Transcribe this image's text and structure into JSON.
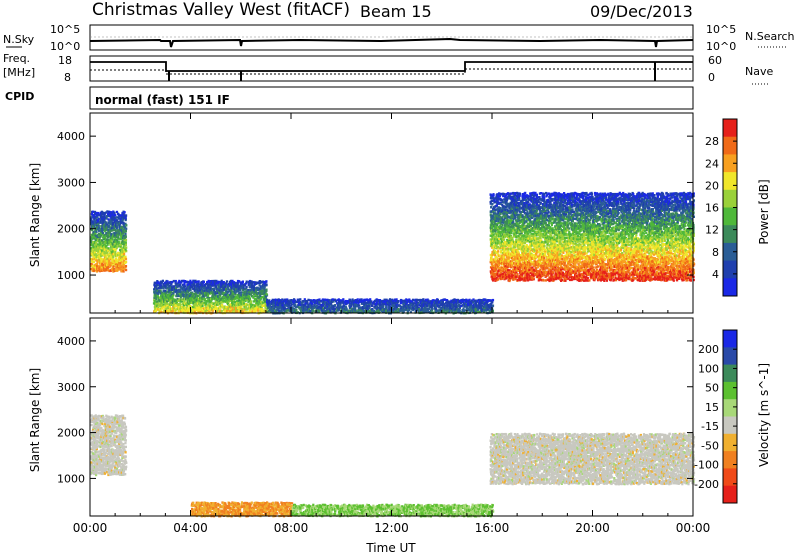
{
  "header": {
    "site_title": "Christmas Valley West (fitACF)",
    "beam_label": "Beam 15",
    "date": "09/Dec/2013"
  },
  "nsky_panel": {
    "left_label": "N.Sky",
    "left_ticks": [
      "10^5",
      "10^0"
    ],
    "right_label": "N.Search",
    "right_ticks": [
      "10^5",
      "10^0"
    ]
  },
  "freq_panel": {
    "left_label_line1": "Freq.",
    "left_label_line2": "[MHz]",
    "left_ticks": [
      "18",
      "8"
    ],
    "right_label": "Nave",
    "right_ticks": [
      "60",
      "0"
    ]
  },
  "cpid": {
    "label": "CPID",
    "value": "normal (fast) 151 IF"
  },
  "colors": {
    "power_scale": [
      "#1a28e6",
      "#1f3fae",
      "#2a5d96",
      "#3c8a5a",
      "#4fb83a",
      "#9ad13a",
      "#f0e62a",
      "#f8a020",
      "#f06a18",
      "#e6201a"
    ],
    "velocity_scale": [
      "#1a28e6",
      "#2a4aa8",
      "#3c8a5a",
      "#5cc030",
      "#a8d878",
      "#c8c8c0",
      "#f0b030",
      "#f08020",
      "#f04a18",
      "#e6201a"
    ]
  },
  "chart_data": [
    {
      "type": "heatmap",
      "ylabel": "Slant Range [km]",
      "y_ticks": [
        "1000",
        "2000",
        "3000",
        "4000"
      ],
      "ylim": [
        180,
        4500
      ],
      "x_ticks": [
        "00:00",
        "04:00",
        "08:00",
        "12:00",
        "16:00",
        "20:00",
        "00:00"
      ],
      "xlim_hours": [
        0,
        24
      ],
      "colorbar_label": "Power [dB]",
      "colorbar_ticks": [
        "4",
        "8",
        "12",
        "16",
        "20",
        "24",
        "28"
      ],
      "features": [
        {
          "t_start": 0.0,
          "t_end": 1.4,
          "range_low": 1100,
          "range_high": 2400,
          "peak_power": 24
        },
        {
          "t_start": 2.5,
          "t_end": 7.0,
          "range_low": 200,
          "range_high": 900,
          "peak_power": 20
        },
        {
          "t_start": 7.0,
          "t_end": 16.0,
          "range_low": 200,
          "range_high": 500,
          "peak_power": 8
        },
        {
          "t_start": 15.9,
          "t_end": 24.0,
          "range_low": 900,
          "range_high": 2800,
          "peak_power": 28
        }
      ]
    },
    {
      "type": "heatmap",
      "ylabel": "Slant Range [km]",
      "y_ticks": [
        "1000",
        "2000",
        "3000",
        "4000"
      ],
      "ylim": [
        180,
        4500
      ],
      "x_ticks": [
        "00:00",
        "04:00",
        "08:00",
        "12:00",
        "16:00",
        "20:00",
        "00:00"
      ],
      "xlabel": "Time UT",
      "xlim_hours": [
        0,
        24
      ],
      "colorbar_label": "Velocity [m s^-1]",
      "colorbar_ticks": [
        "200",
        "100",
        "50",
        "15",
        "-15",
        "-50",
        "-100",
        "-200"
      ],
      "features": [
        {
          "t_start": 0.0,
          "t_end": 1.4,
          "range_low": 1100,
          "range_high": 2400,
          "velocity": 0
        },
        {
          "t_start": 4.0,
          "t_end": 8.0,
          "range_low": 200,
          "range_high": 500,
          "velocity": -60
        },
        {
          "t_start": 8.0,
          "t_end": 16.0,
          "range_low": 200,
          "range_high": 450,
          "velocity": 30
        },
        {
          "t_start": 15.9,
          "t_end": 24.0,
          "range_low": 900,
          "range_high": 2000,
          "velocity": 0
        }
      ]
    }
  ]
}
